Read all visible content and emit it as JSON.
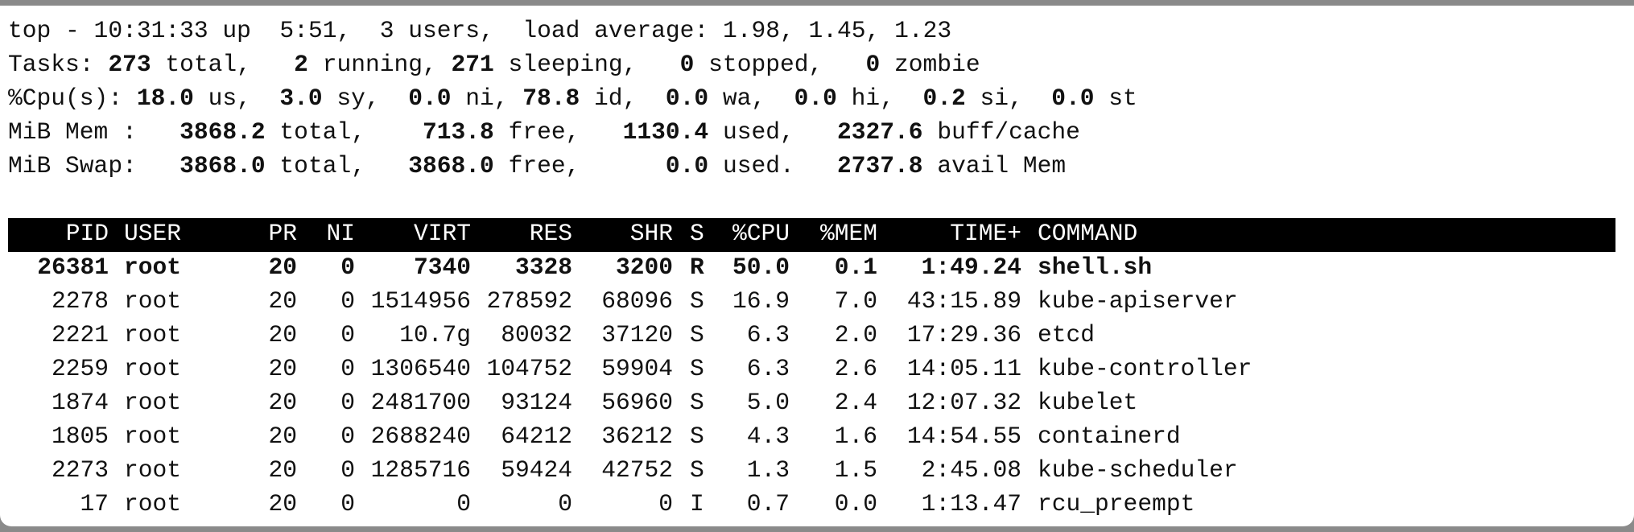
{
  "summary": {
    "uptime": "top - 10:31:33 up  5:51,  3 users,  load average: 1.98, 1.45, 1.23",
    "lines": [
      {
        "label": "Tasks:",
        "items": [
          {
            "value": "273",
            "unit": "total,"
          },
          {
            "value": "2",
            "unit": "running,"
          },
          {
            "value": "271",
            "unit": "sleeping,"
          },
          {
            "value": "0",
            "unit": "stopped,"
          },
          {
            "value": "0",
            "unit": "zombie"
          }
        ]
      },
      {
        "label": "%Cpu(s):",
        "items": [
          {
            "value": "18.0",
            "unit": "us,"
          },
          {
            "value": "3.0",
            "unit": "sy,"
          },
          {
            "value": "0.0",
            "unit": "ni,"
          },
          {
            "value": "78.8",
            "unit": "id,"
          },
          {
            "value": "0.0",
            "unit": "wa,"
          },
          {
            "value": "0.0",
            "unit": "hi,"
          },
          {
            "value": "0.2",
            "unit": "si,"
          },
          {
            "value": "0.0",
            "unit": "st"
          }
        ]
      },
      {
        "label": "MiB Mem :",
        "items": [
          {
            "value": "3868.2",
            "unit": "total,"
          },
          {
            "value": "713.8",
            "unit": "free,"
          },
          {
            "value": "1130.4",
            "unit": "used,"
          },
          {
            "value": "2327.6",
            "unit": "buff/cache"
          }
        ]
      },
      {
        "label": "MiB Swap:",
        "items": [
          {
            "value": "3868.0",
            "unit": "total,"
          },
          {
            "value": "3868.0",
            "unit": "free,"
          },
          {
            "value": "0.0",
            "unit": "used."
          },
          {
            "value": "2737.8",
            "unit": "avail Mem"
          }
        ]
      }
    ]
  },
  "table": {
    "columns": [
      "PID",
      "USER",
      "PR",
      "NI",
      "VIRT",
      "RES",
      "SHR",
      "S",
      "%CPU",
      "%MEM",
      "TIME+",
      "COMMAND"
    ],
    "rows": [
      [
        "26381",
        "root",
        "20",
        "0",
        "7340",
        "3328",
        "3200",
        "R",
        "50.0",
        "0.1",
        "1:49.24",
        "shell.sh"
      ],
      [
        "2278",
        "root",
        "20",
        "0",
        "1514956",
        "278592",
        "68096",
        "S",
        "16.9",
        "7.0",
        "43:15.89",
        "kube-apiserver"
      ],
      [
        "2221",
        "root",
        "20",
        "0",
        "10.7g",
        "80032",
        "37120",
        "S",
        "6.3",
        "2.0",
        "17:29.36",
        "etcd"
      ],
      [
        "2259",
        "root",
        "20",
        "0",
        "1306540",
        "104752",
        "59904",
        "S",
        "6.3",
        "2.6",
        "14:05.11",
        "kube-controller"
      ],
      [
        "1874",
        "root",
        "20",
        "0",
        "2481700",
        "93124",
        "56960",
        "S",
        "5.0",
        "2.4",
        "12:07.32",
        "kubelet"
      ],
      [
        "1805",
        "root",
        "20",
        "0",
        "2688240",
        "64212",
        "36212",
        "S",
        "4.3",
        "1.6",
        "14:54.55",
        "containerd"
      ],
      [
        "2273",
        "root",
        "20",
        "0",
        "1285716",
        "59424",
        "42752",
        "S",
        "1.3",
        "1.5",
        "2:45.08",
        "kube-scheduler"
      ],
      [
        "17",
        "root",
        "20",
        "0",
        "0",
        "0",
        "0",
        "I",
        "0.7",
        "0.0",
        "1:13.47",
        "rcu_preempt"
      ]
    ]
  }
}
